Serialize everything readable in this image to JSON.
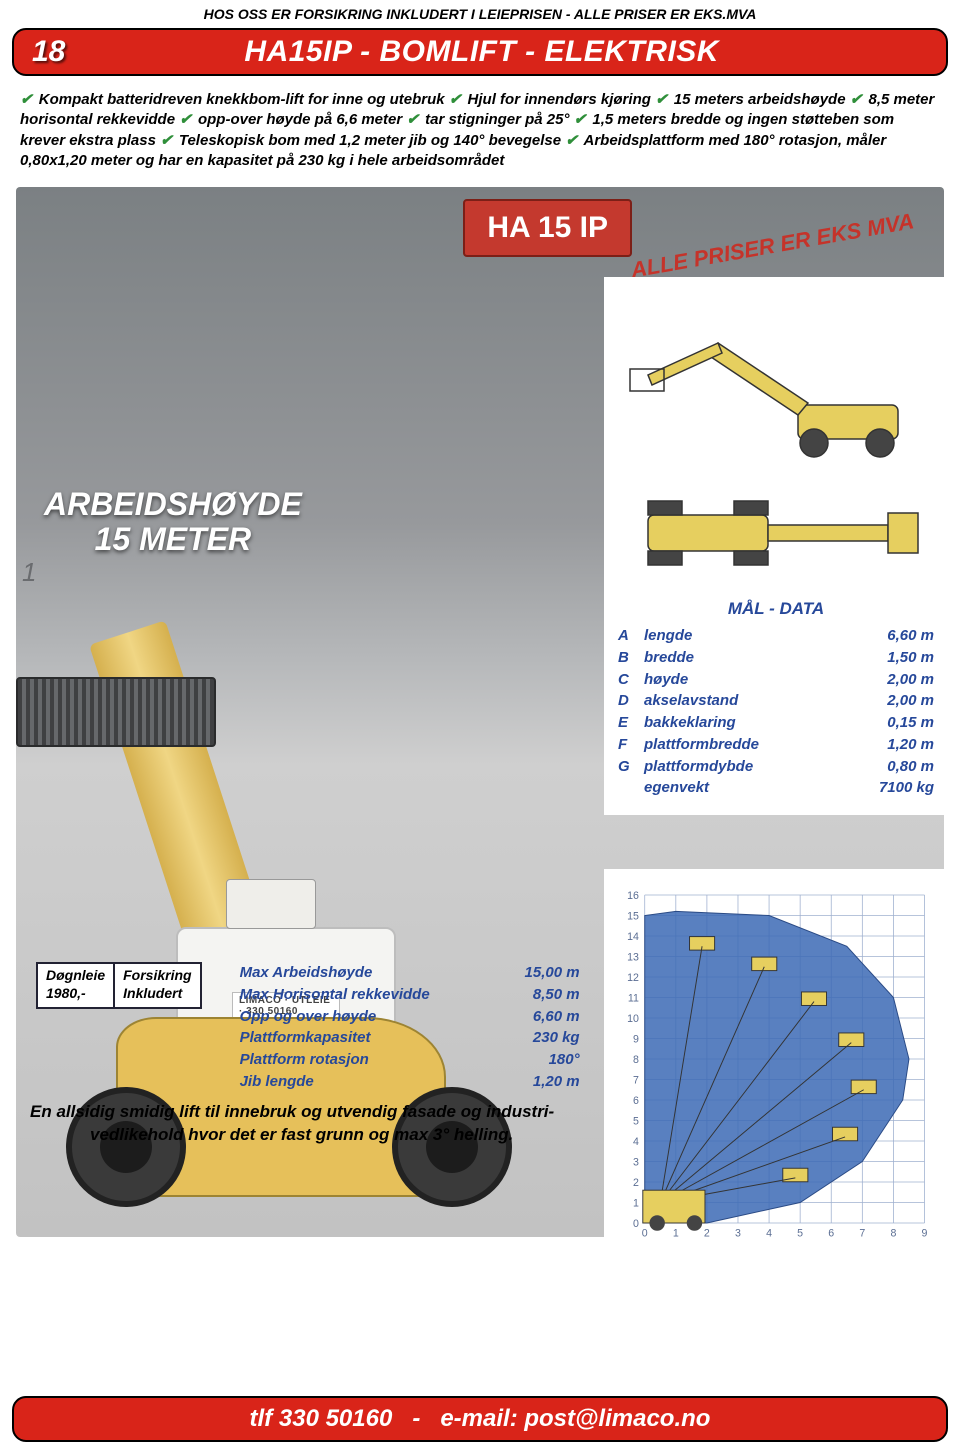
{
  "header": {
    "top_line": "HOS OSS ER FORSIKRING INKLUDERT I LEIEPRISEN  -  ALLE PRISER ER EKS.MVA",
    "page_number": "18",
    "title": "HA15IP - BOMLIFT - ELEKTRISK"
  },
  "features_parts": [
    "Kompakt batteridreven knekkbom-lift for inne og utebruk",
    "Hjul for innendørs kjøring",
    "15 meters arbeidshøyde",
    "8,5 meter horisontal rekkevidde",
    "opp-over høyde på 6,6 meter",
    "tar stigninger på 25°",
    "1,5 meters bredde og ingen støtteben som krever ekstra plass",
    "Teleskopisk bom med 1,2 meter jib og 140° bevegelse",
    "Arbeidsplattform med 180° rotasjon, måler 0,80x1,20 meter og har en kapasitet på 230 kg i hele arbeidsområdet"
  ],
  "work_height": {
    "line1": "ARBEIDSHØYDE",
    "line2": "15 METER"
  },
  "model_badge": "HA 15 IP",
  "price_stamp": "ALLE PRISER ER EKS MVA",
  "left_number": "1",
  "lift_logo": "LIMACO · UTLEIE · 330 50160",
  "mal_data": {
    "title": "MÅL - DATA",
    "rows": [
      {
        "key": "A",
        "label": "lengde",
        "value": "6,60 m"
      },
      {
        "key": "B",
        "label": "bredde",
        "value": "1,50 m"
      },
      {
        "key": "C",
        "label": "høyde",
        "value": "2,00 m"
      },
      {
        "key": "D",
        "label": "akselavstand",
        "value": "2,00 m"
      },
      {
        "key": "E",
        "label": "bakkeklaring",
        "value": "0,15 m"
      },
      {
        "key": "F",
        "label": "plattformbredde",
        "value": "1,20 m"
      },
      {
        "key": "G",
        "label": "plattformdybde",
        "value": "0,80 m"
      },
      {
        "key": "",
        "label": "egenvekt",
        "value": "7100 kg"
      }
    ]
  },
  "price_box": {
    "col1_label": "Døgnleie",
    "col1_value": "1980,-",
    "col2_label": "Forsikring",
    "col2_value": "Inkludert"
  },
  "specs": [
    {
      "label": "Max Arbeidshøyde",
      "value": "15,00 m"
    },
    {
      "label": "Max Horisontal rekkevidde",
      "value": "8,50 m"
    },
    {
      "label": "Opp og over høyde",
      "value": "6,60 m"
    },
    {
      "label": "Plattformkapasitet",
      "value": "230 kg"
    },
    {
      "label": "Plattform rotasjon",
      "value": "180°"
    },
    {
      "label": "Jib lengde",
      "value": "1,20 m"
    }
  ],
  "bottom_text": {
    "line1": "En allsidig smidig lift til innebruk og utvendig fasade og industri-",
    "line2": "vedlikehold hvor det er fast grunn og max 3° helling."
  },
  "footer": {
    "phone_label": "tlf 330 50160",
    "sep": "-",
    "email_label": "e-mail: post@limaco.no"
  },
  "colors": {
    "red": "#d92419",
    "blue": "#26489a",
    "green_check": "#2f8f3a",
    "machine_yellow": "#e6c05a",
    "grid": "#9fb0cf",
    "arc_fill": "#3c6ab5"
  },
  "reach_chart": {
    "x_ticks": [
      0,
      1,
      2,
      3,
      4,
      5,
      6,
      7,
      8,
      9
    ],
    "y_ticks": [
      0,
      1,
      2,
      3,
      4,
      5,
      6,
      7,
      8,
      9,
      10,
      11,
      12,
      13,
      14,
      15,
      16
    ],
    "grid_color": "#9fb0cf",
    "arc_fill": "#3c6ab5"
  },
  "tech_drawing": {
    "machine_color": "#e6cf5f",
    "line_color": "#333"
  }
}
